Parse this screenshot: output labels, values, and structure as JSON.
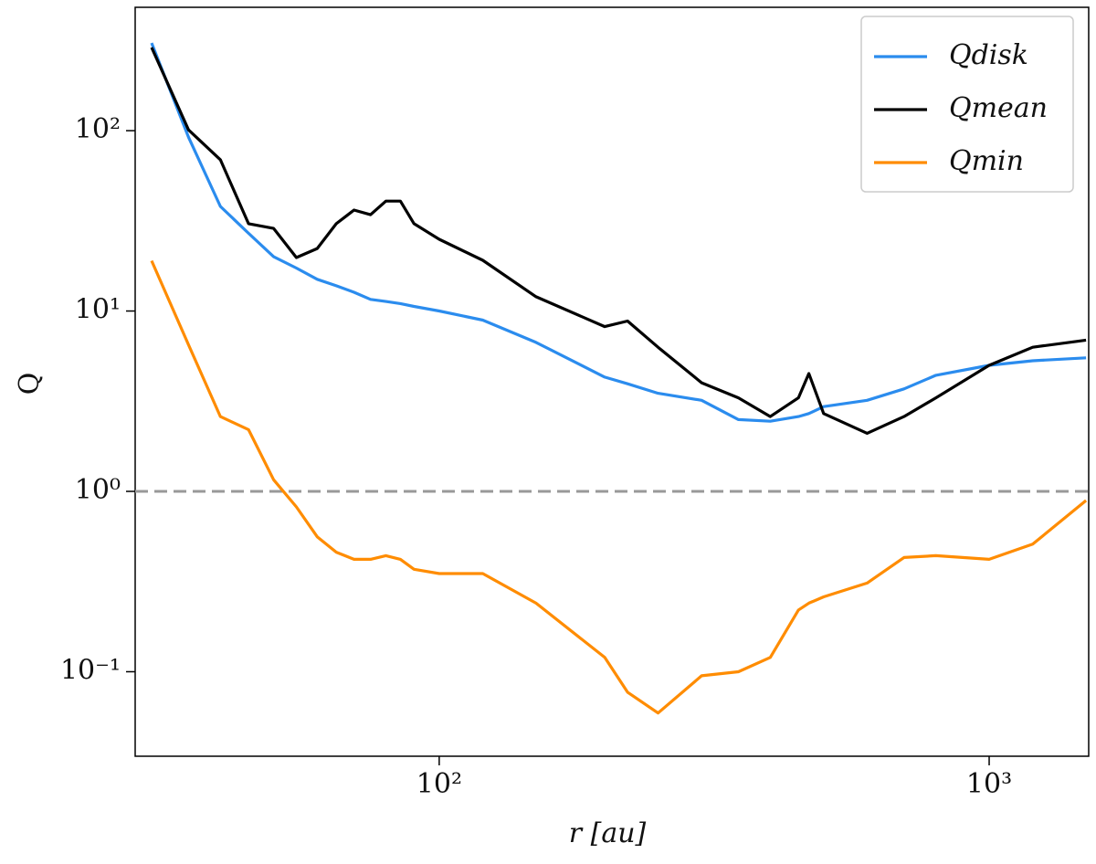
{
  "chart_data": {
    "type": "line",
    "xlabel": "r [au]",
    "ylabel": "Q",
    "xscale": "log",
    "yscale": "log",
    "xlim": [
      28,
      1517
    ],
    "ylim": [
      0.034,
      483
    ],
    "xticks": [
      {
        "value": 100,
        "label": "10²"
      },
      {
        "value": 1000,
        "label": "10³"
      }
    ],
    "yticks": [
      {
        "value": 0.1,
        "label": "10⁻¹"
      },
      {
        "value": 1,
        "label": "10⁰"
      },
      {
        "value": 10,
        "label": "10¹"
      },
      {
        "value": 100,
        "label": "10²"
      }
    ],
    "legend": "upper right",
    "reference_line": {
      "value": 1,
      "color": "#999999",
      "style": "dashed"
    },
    "x": [
      30,
      35,
      40,
      45,
      50,
      55,
      60,
      65,
      70,
      75,
      80,
      85,
      90,
      100,
      120,
      150,
      200,
      220,
      250,
      300,
      350,
      400,
      450,
      470,
      500,
      600,
      700,
      800,
      1000,
      1200,
      1500
    ],
    "series": [
      {
        "name": "Qdisk",
        "color": "#2b8cee",
        "values": [
          306,
          92,
          38,
          27,
          20,
          17.3,
          15,
          13.8,
          12.7,
          11.6,
          11.3,
          11.0,
          10.6,
          10,
          8.9,
          6.7,
          4.3,
          3.95,
          3.5,
          3.2,
          2.5,
          2.45,
          2.6,
          2.7,
          2.95,
          3.2,
          3.7,
          4.4,
          5.0,
          5.3,
          5.5
        ]
      },
      {
        "name": "Qmean",
        "color": "#000000",
        "values": [
          289,
          101,
          69,
          30.5,
          28.7,
          19.8,
          22.2,
          30.5,
          36.3,
          34.2,
          40.7,
          40.7,
          30.5,
          25,
          19.1,
          12,
          8.2,
          8.8,
          6.3,
          4.0,
          3.3,
          2.6,
          3.3,
          4.5,
          2.7,
          2.1,
          2.6,
          3.3,
          5.0,
          6.3,
          6.9
        ]
      },
      {
        "name": "Qmin",
        "color": "#ff8c00",
        "values": [
          19,
          6.5,
          2.6,
          2.2,
          1.16,
          0.82,
          0.56,
          0.46,
          0.42,
          0.42,
          0.44,
          0.42,
          0.37,
          0.35,
          0.35,
          0.24,
          0.12,
          0.077,
          0.059,
          0.095,
          0.1,
          0.12,
          0.22,
          0.24,
          0.26,
          0.31,
          0.43,
          0.44,
          0.42,
          0.51,
          0.89
        ]
      }
    ]
  }
}
